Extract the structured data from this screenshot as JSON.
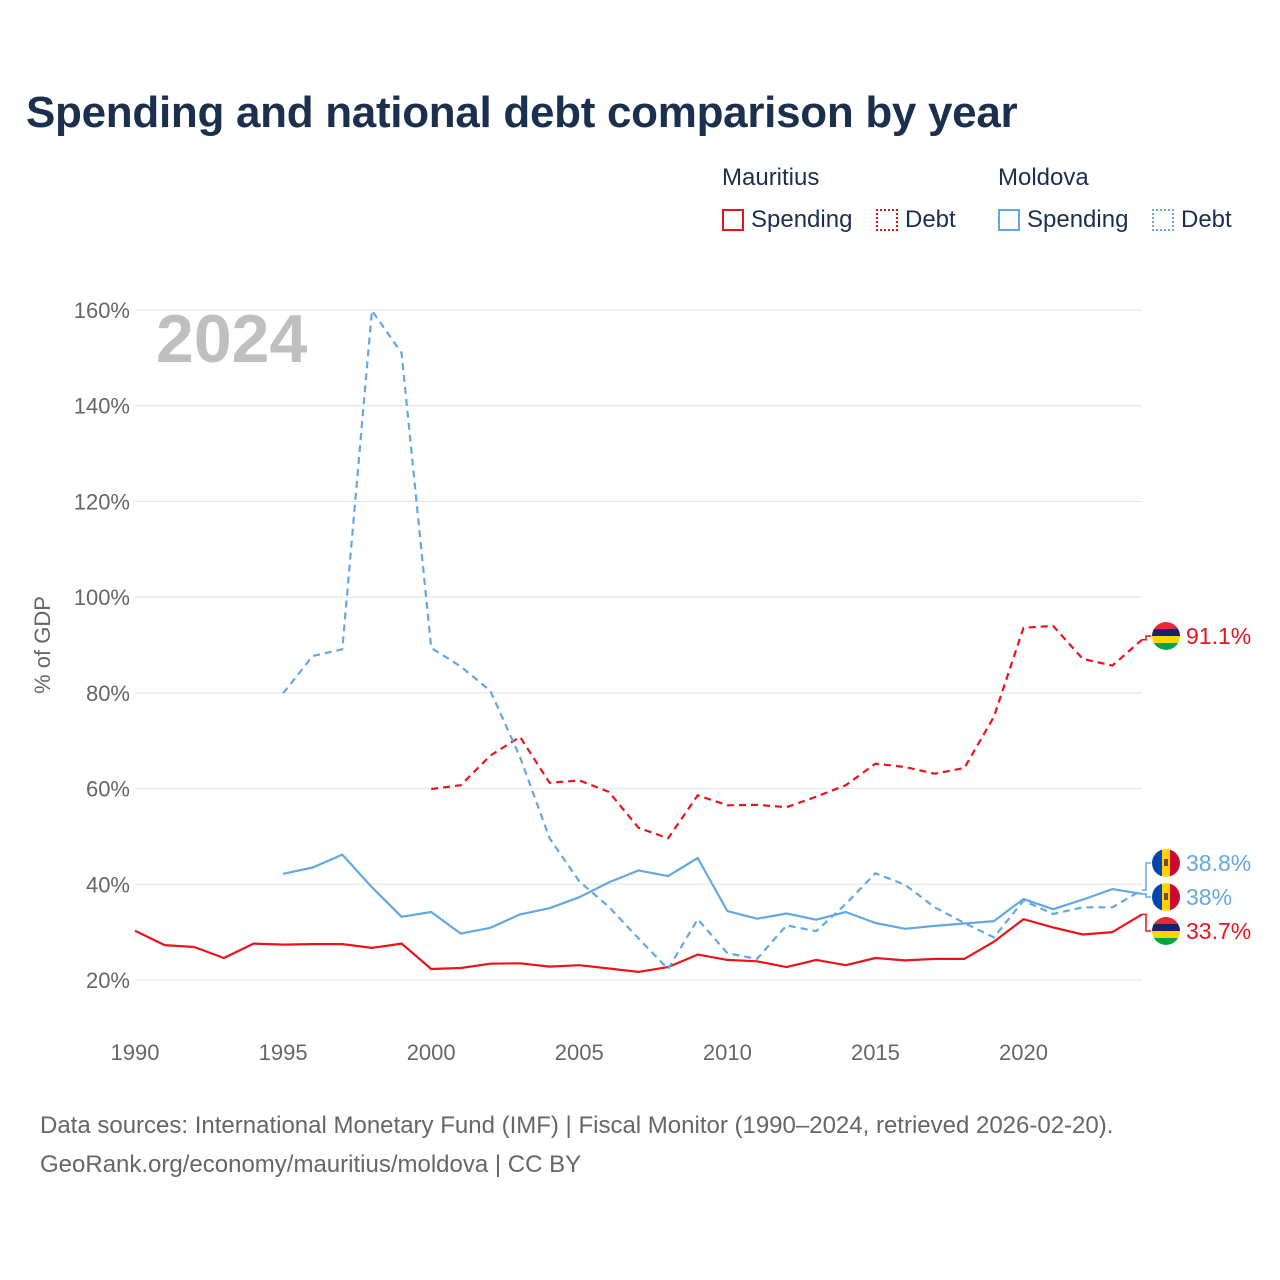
{
  "title": "Spending and national debt comparison by year",
  "legend": {
    "mauritius": {
      "country": "Mauritius",
      "spending": "Spending",
      "debt": "Debt"
    },
    "moldova": {
      "country": "Moldova",
      "spending": "Spending",
      "debt": "Debt"
    }
  },
  "colors": {
    "mauritius": "#e8141c",
    "moldova": "#63a8e3",
    "grid": "#e6e6e6",
    "year": "#bfbfbf"
  },
  "source_line1": "Data sources: International Monetary Fund (IMF) | Fiscal Monitor (1990–2024, retrieved 2026-02-20).",
  "source_line2": "GeoRank.org/economy/mauritius/moldova | CC BY",
  "chart_data": {
    "type": "line",
    "title": "Spending and national debt comparison by year",
    "current_year_label": "2024",
    "xlabel": "",
    "ylabel": "% of GDP",
    "xlim": [
      1990,
      2024
    ],
    "ylim": [
      13,
      162
    ],
    "x_ticks": [
      1990,
      1995,
      2000,
      2005,
      2010,
      2015,
      2020
    ],
    "x_tick_labels": [
      "1990",
      "1995",
      "2000",
      "2005",
      "2010",
      "2015",
      "2020"
    ],
    "y_ticks": [
      20,
      40,
      60,
      80,
      100,
      120,
      140,
      160
    ],
    "y_tick_labels": [
      "20%",
      "40%",
      "60%",
      "80%",
      "100%",
      "120%",
      "140%",
      "160%"
    ],
    "grid": true,
    "series": [
      {
        "name": "Mauritius Spending",
        "country": "Mauritius",
        "metric": "Spending",
        "style": "solid",
        "color": "#e8141c",
        "x": [
          1990,
          1991,
          1992,
          1993,
          1994,
          1995,
          1996,
          1997,
          1998,
          1999,
          2000,
          2001,
          2002,
          2003,
          2004,
          2005,
          2006,
          2007,
          2008,
          2009,
          2010,
          2011,
          2012,
          2013,
          2014,
          2015,
          2016,
          2017,
          2018,
          2019,
          2020,
          2021,
          2022,
          2023,
          2024
        ],
        "values": [
          30.3,
          27.3,
          26.9,
          24.6,
          27.6,
          27.4,
          27.5,
          27.5,
          26.7,
          27.6,
          22.3,
          22.5,
          23.4,
          23.5,
          22.8,
          23.1,
          22.4,
          21.7,
          22.7,
          25.3,
          24.2,
          23.9,
          22.7,
          24.2,
          23.1,
          24.6,
          24.1,
          24.4,
          24.4,
          28.0,
          32.7,
          31.0,
          29.5,
          30.0,
          33.7
        ],
        "end_label": "33.7%"
      },
      {
        "name": "Mauritius Debt",
        "country": "Mauritius",
        "metric": "Debt",
        "style": "dashed",
        "color": "#e8141c",
        "x": [
          2000,
          2001,
          2002,
          2003,
          2004,
          2005,
          2006,
          2007,
          2008,
          2009,
          2010,
          2011,
          2012,
          2013,
          2014,
          2015,
          2016,
          2017,
          2018,
          2019,
          2020,
          2021,
          2022,
          2023,
          2024
        ],
        "values": [
          59.9,
          60.7,
          66.9,
          70.8,
          61.2,
          61.7,
          59.3,
          51.8,
          49.6,
          58.6,
          56.5,
          56.6,
          56.1,
          58.3,
          60.7,
          65.2,
          64.5,
          63.1,
          64.3,
          75.0,
          93.6,
          94.0,
          87.1,
          85.7,
          91.1
        ],
        "end_label": "91.1%"
      },
      {
        "name": "Moldova Spending",
        "country": "Moldova",
        "metric": "Spending",
        "style": "solid",
        "color": "#63a8e3",
        "x": [
          1995,
          1996,
          1997,
          1998,
          1999,
          2000,
          2001,
          2002,
          2003,
          2004,
          2005,
          2006,
          2007,
          2008,
          2009,
          2010,
          2011,
          2012,
          2013,
          2014,
          2015,
          2016,
          2017,
          2018,
          2019,
          2020,
          2021,
          2022,
          2023,
          2024
        ],
        "values": [
          42.2,
          43.5,
          46.2,
          39.4,
          33.2,
          34.2,
          29.7,
          30.9,
          33.7,
          35.0,
          37.3,
          40.4,
          42.9,
          41.7,
          45.5,
          34.4,
          32.8,
          33.9,
          32.6,
          34.2,
          31.9,
          30.7,
          31.3,
          31.8,
          32.3,
          36.9,
          34.8,
          36.8,
          39.0,
          38.0
        ],
        "end_label": "38%"
      },
      {
        "name": "Moldova Debt",
        "country": "Moldova",
        "metric": "Debt",
        "style": "dashed",
        "color": "#63a8e3",
        "x": [
          1995,
          1996,
          1997,
          1998,
          1999,
          2000,
          2001,
          2002,
          2003,
          2004,
          2005,
          2006,
          2007,
          2008,
          2009,
          2010,
          2011,
          2012,
          2013,
          2014,
          2015,
          2016,
          2017,
          2018,
          2019,
          2020,
          2021,
          2022,
          2023,
          2024
        ],
        "values": [
          79.9,
          87.7,
          89.1,
          159.9,
          151.0,
          89.4,
          85.5,
          80.4,
          66.6,
          49.6,
          40.6,
          35.3,
          28.7,
          22.3,
          32.7,
          25.6,
          24.4,
          31.4,
          30.2,
          35.9,
          42.3,
          39.9,
          35.2,
          31.9,
          28.9,
          36.6,
          33.8,
          35.2,
          35.2,
          38.8
        ],
        "end_label": "38.8%"
      }
    ]
  }
}
